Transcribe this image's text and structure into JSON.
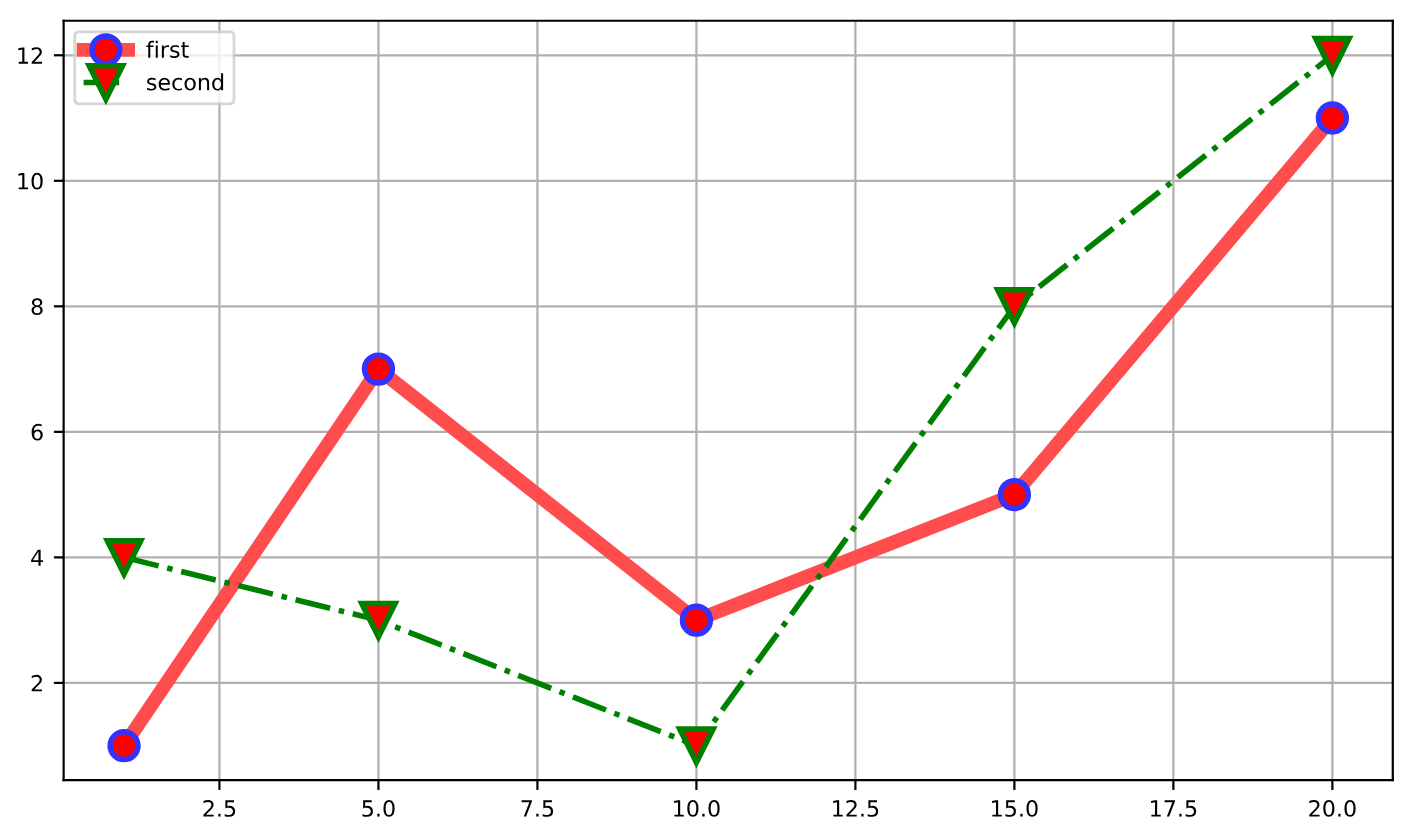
{
  "chart_data": {
    "type": "line",
    "x": [
      1,
      5,
      10,
      15,
      20
    ],
    "series": [
      {
        "name": "first",
        "color": "#ff4d4d",
        "values": [
          1,
          7,
          3,
          5,
          11
        ],
        "marker": "circle",
        "line_style": "solid"
      },
      {
        "name": "second",
        "color": "#008000",
        "values": [
          4,
          3,
          1,
          8,
          12
        ],
        "marker": "triangle",
        "line_style": "dashdot"
      }
    ],
    "xlim": [
      0.05,
      20.95
    ],
    "ylim": [
      0.45,
      12.55
    ],
    "xticks": [
      {
        "value": 2.5,
        "label": "2.5"
      },
      {
        "value": 5,
        "label": "5.0"
      },
      {
        "value": 7.5,
        "label": "7.5"
      },
      {
        "value": 10,
        "label": "10.0"
      },
      {
        "value": 12.5,
        "label": "12.5"
      },
      {
        "value": 15,
        "label": "15.0"
      },
      {
        "value": 17.5,
        "label": "17.5"
      },
      {
        "value": 20,
        "label": "20.0"
      }
    ],
    "yticks": [
      2,
      4,
      6,
      8,
      10,
      12
    ],
    "grid": true,
    "legend": "top left"
  }
}
